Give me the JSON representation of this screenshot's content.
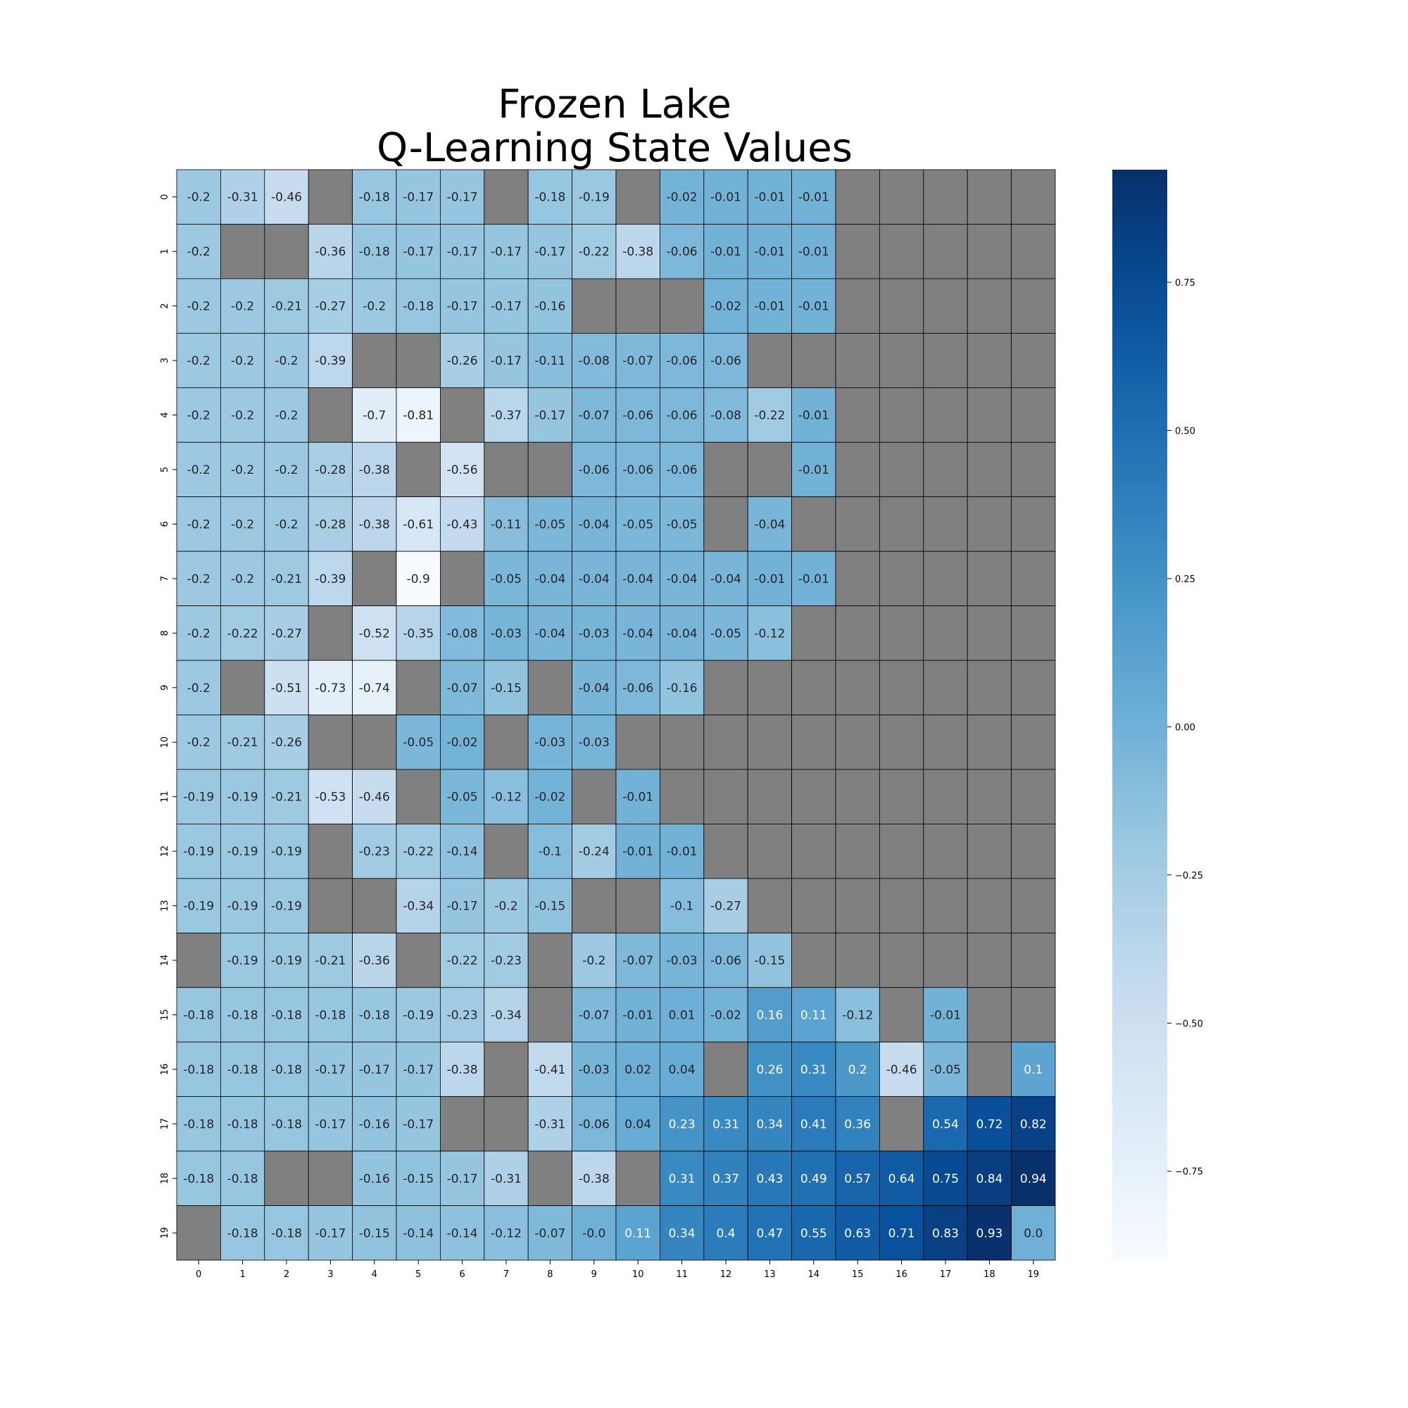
{
  "chart_data": {
    "type": "heatmap",
    "title": [
      "Frozen Lake",
      "Q-Learning State Values"
    ],
    "xlabel": "",
    "ylabel": "",
    "x_ticks": [
      "0",
      "1",
      "2",
      "3",
      "4",
      "5",
      "6",
      "7",
      "8",
      "9",
      "10",
      "11",
      "12",
      "13",
      "14",
      "15",
      "16",
      "17",
      "18",
      "19"
    ],
    "y_ticks": [
      "0",
      "1",
      "2",
      "3",
      "4",
      "5",
      "6",
      "7",
      "8",
      "9",
      "10",
      "11",
      "12",
      "13",
      "14",
      "15",
      "16",
      "17",
      "18",
      "19"
    ],
    "colormap": "Blues",
    "vmin": -0.9,
    "vmax": 0.94,
    "masked_color": "#808080",
    "colorbar_ticks": [
      {
        "value": 0.75,
        "label": "0.75"
      },
      {
        "value": 0.5,
        "label": "0.50"
      },
      {
        "value": 0.25,
        "label": "0.25"
      },
      {
        "value": 0.0,
        "label": "0.00"
      },
      {
        "value": -0.25,
        "label": "−0.25"
      },
      {
        "value": -0.5,
        "label": "−0.50"
      },
      {
        "value": -0.75,
        "label": "−0.75"
      }
    ],
    "values": [
      [
        "-0.2",
        "-0.31",
        "-0.46",
        null,
        "-0.18",
        "-0.17",
        "-0.17",
        null,
        "-0.18",
        "-0.19",
        null,
        "-0.02",
        "-0.01",
        "-0.01",
        "-0.01",
        null,
        null,
        null,
        null,
        null
      ],
      [
        "-0.2",
        null,
        null,
        "-0.36",
        "-0.18",
        "-0.17",
        "-0.17",
        "-0.17",
        "-0.17",
        "-0.22",
        "-0.38",
        "-0.06",
        "-0.01",
        "-0.01",
        "-0.01",
        null,
        null,
        null,
        null,
        null
      ],
      [
        "-0.2",
        "-0.2",
        "-0.21",
        "-0.27",
        "-0.2",
        "-0.18",
        "-0.17",
        "-0.17",
        "-0.16",
        null,
        null,
        null,
        "-0.02",
        "-0.01",
        "-0.01",
        null,
        null,
        null,
        null,
        null
      ],
      [
        "-0.2",
        "-0.2",
        "-0.2",
        "-0.39",
        null,
        null,
        "-0.26",
        "-0.17",
        "-0.11",
        "-0.08",
        "-0.07",
        "-0.06",
        "-0.06",
        null,
        null,
        null,
        null,
        null,
        null,
        null
      ],
      [
        "-0.2",
        "-0.2",
        "-0.2",
        null,
        "-0.7",
        "-0.81",
        null,
        "-0.37",
        "-0.17",
        "-0.07",
        "-0.06",
        "-0.06",
        "-0.08",
        "-0.22",
        "-0.01",
        null,
        null,
        null,
        null,
        null
      ],
      [
        "-0.2",
        "-0.2",
        "-0.2",
        "-0.28",
        "-0.38",
        null,
        "-0.56",
        null,
        null,
        "-0.06",
        "-0.06",
        "-0.06",
        null,
        null,
        "-0.01",
        null,
        null,
        null,
        null,
        null
      ],
      [
        "-0.2",
        "-0.2",
        "-0.2",
        "-0.28",
        "-0.38",
        "-0.61",
        "-0.43",
        "-0.11",
        "-0.05",
        "-0.04",
        "-0.05",
        "-0.05",
        null,
        "-0.04",
        null,
        null,
        null,
        null,
        null,
        null
      ],
      [
        "-0.2",
        "-0.2",
        "-0.21",
        "-0.39",
        null,
        "-0.9",
        null,
        "-0.05",
        "-0.04",
        "-0.04",
        "-0.04",
        "-0.04",
        "-0.04",
        "-0.01",
        "-0.01",
        null,
        null,
        null,
        null,
        null
      ],
      [
        "-0.2",
        "-0.22",
        "-0.27",
        null,
        "-0.52",
        "-0.35",
        "-0.08",
        "-0.03",
        "-0.04",
        "-0.03",
        "-0.04",
        "-0.04",
        "-0.05",
        "-0.12",
        null,
        null,
        null,
        null,
        null,
        null
      ],
      [
        "-0.2",
        null,
        "-0.51",
        "-0.73",
        "-0.74",
        null,
        "-0.07",
        "-0.15",
        null,
        "-0.04",
        "-0.06",
        "-0.16",
        null,
        null,
        null,
        null,
        null,
        null,
        null,
        null
      ],
      [
        "-0.2",
        "-0.21",
        "-0.26",
        null,
        null,
        "-0.05",
        "-0.02",
        null,
        "-0.03",
        "-0.03",
        null,
        null,
        null,
        null,
        null,
        null,
        null,
        null,
        null,
        null
      ],
      [
        "-0.19",
        "-0.19",
        "-0.21",
        "-0.53",
        "-0.46",
        null,
        "-0.05",
        "-0.12",
        "-0.02",
        null,
        "-0.01",
        null,
        null,
        null,
        null,
        null,
        null,
        null,
        null,
        null
      ],
      [
        "-0.19",
        "-0.19",
        "-0.19",
        null,
        "-0.23",
        "-0.22",
        "-0.14",
        null,
        "-0.1",
        "-0.24",
        "-0.01",
        "-0.01",
        null,
        null,
        null,
        null,
        null,
        null,
        null,
        null
      ],
      [
        "-0.19",
        "-0.19",
        "-0.19",
        null,
        null,
        "-0.34",
        "-0.17",
        "-0.2",
        "-0.15",
        null,
        null,
        "-0.1",
        "-0.27",
        null,
        null,
        null,
        null,
        null,
        null,
        null
      ],
      [
        null,
        "-0.19",
        "-0.19",
        "-0.21",
        "-0.36",
        null,
        "-0.22",
        "-0.23",
        null,
        "-0.2",
        "-0.07",
        "-0.03",
        "-0.06",
        "-0.15",
        null,
        null,
        null,
        null,
        null,
        null
      ],
      [
        "-0.18",
        "-0.18",
        "-0.18",
        "-0.18",
        "-0.18",
        "-0.19",
        "-0.23",
        "-0.34",
        null,
        "-0.07",
        "-0.01",
        "0.01",
        "-0.02",
        "0.16",
        "0.11",
        "-0.12",
        null,
        "-0.01",
        null,
        null
      ],
      [
        "-0.18",
        "-0.18",
        "-0.18",
        "-0.17",
        "-0.17",
        "-0.17",
        "-0.38",
        null,
        "-0.41",
        "-0.03",
        "0.02",
        "0.04",
        null,
        "0.26",
        "0.31",
        "0.2",
        "-0.46",
        "-0.05",
        null,
        "0.1"
      ],
      [
        "-0.18",
        "-0.18",
        "-0.18",
        "-0.17",
        "-0.16",
        "-0.17",
        null,
        null,
        "-0.31",
        "-0.06",
        "0.04",
        "0.23",
        "0.31",
        "0.34",
        "0.41",
        "0.36",
        null,
        "0.54",
        "0.72",
        "0.82"
      ],
      [
        "-0.18",
        "-0.18",
        null,
        null,
        "-0.16",
        "-0.15",
        "-0.17",
        "-0.31",
        null,
        "-0.38",
        null,
        "0.31",
        "0.37",
        "0.43",
        "0.49",
        "0.57",
        "0.64",
        "0.75",
        "0.84",
        "0.94"
      ],
      [
        null,
        "-0.18",
        "-0.18",
        "-0.17",
        "-0.15",
        "-0.14",
        "-0.14",
        "-0.12",
        "-0.07",
        "-0.0",
        "0.11",
        "0.34",
        "0.4",
        "0.47",
        "0.55",
        "0.63",
        "0.71",
        "0.83",
        "0.93",
        "0.0"
      ]
    ]
  }
}
